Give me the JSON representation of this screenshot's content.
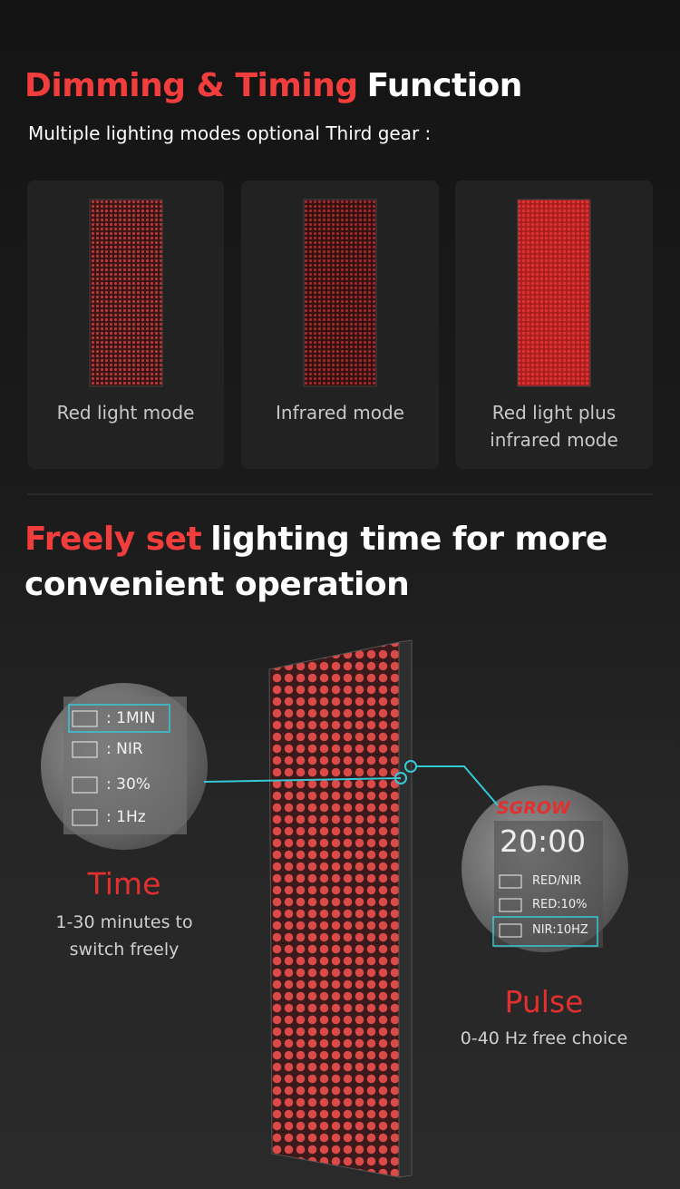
{
  "section1": {
    "title_highlight": "Dimming & Timing",
    "title_rest": "Function",
    "subtitle": "Multiple lighting modes optional Third gear :",
    "modes": [
      "Red light mode",
      "Infrared mode",
      "Red light plus infrared mode"
    ]
  },
  "section2": {
    "title_highlight": "Freely set",
    "title_rest_line1": "lighting time for more",
    "title_rest_line2": "convenient operation"
  },
  "time_display": {
    "rows": [
      ": 1MIN",
      ": NIR",
      ": 30%",
      ": 1Hz"
    ]
  },
  "time": {
    "label": "Time",
    "description": "1-30 minutes to switch freely"
  },
  "pulse_display": {
    "brand": "SGROW",
    "clock": "20:00",
    "rows": [
      "RED/NIR",
      "RED:10%",
      "NIR:10HZ"
    ]
  },
  "pulse": {
    "label": "Pulse",
    "description": "0-40 Hz free choice"
  }
}
